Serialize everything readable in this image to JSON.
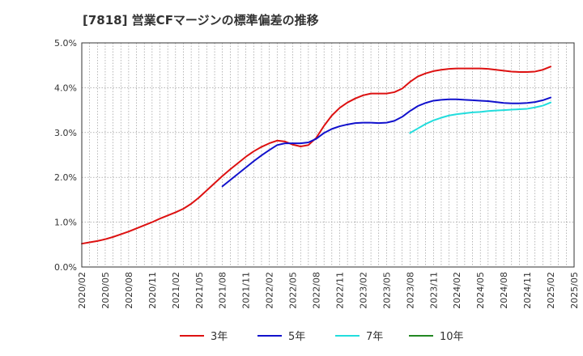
{
  "chart_data": {
    "type": "line",
    "title": "[7818]  営業CFマージンの標準偏差の推移",
    "xlabel": "",
    "ylabel": "",
    "ylim": [
      0,
      5
    ],
    "y_ticks": [
      "0.0%",
      "1.0%",
      "2.0%",
      "3.0%",
      "4.0%",
      "5.0%"
    ],
    "x_ticks": [
      "2020/02",
      "2020/05",
      "2020/08",
      "2020/11",
      "2021/02",
      "2021/05",
      "2021/08",
      "2021/11",
      "2022/02",
      "2022/05",
      "2022/08",
      "2022/11",
      "2023/02",
      "2023/05",
      "2023/08",
      "2023/11",
      "2024/02",
      "2024/05",
      "2024/08",
      "2024/11",
      "2025/02",
      "2025/05"
    ],
    "grid": true,
    "legend_position": "bottom",
    "series": [
      {
        "name": "3年",
        "color": "#dd1111",
        "points": [
          [
            "2020/02",
            0.52
          ],
          [
            "2020/03",
            0.55
          ],
          [
            "2020/04",
            0.58
          ],
          [
            "2020/05",
            0.62
          ],
          [
            "2020/06",
            0.67
          ],
          [
            "2020/07",
            0.73
          ],
          [
            "2020/08",
            0.79
          ],
          [
            "2020/09",
            0.86
          ],
          [
            "2020/10",
            0.93
          ],
          [
            "2020/11",
            1.0
          ],
          [
            "2020/12",
            1.08
          ],
          [
            "2021/01",
            1.15
          ],
          [
            "2021/02",
            1.22
          ],
          [
            "2021/03",
            1.3
          ],
          [
            "2021/04",
            1.41
          ],
          [
            "2021/05",
            1.55
          ],
          [
            "2021/06",
            1.71
          ],
          [
            "2021/07",
            1.87
          ],
          [
            "2021/08",
            2.03
          ],
          [
            "2021/09",
            2.18
          ],
          [
            "2021/10",
            2.32
          ],
          [
            "2021/11",
            2.46
          ],
          [
            "2021/12",
            2.58
          ],
          [
            "2022/01",
            2.68
          ],
          [
            "2022/02",
            2.76
          ],
          [
            "2022/03",
            2.82
          ],
          [
            "2022/04",
            2.8
          ],
          [
            "2022/05",
            2.73
          ],
          [
            "2022/06",
            2.69
          ],
          [
            "2022/07",
            2.72
          ],
          [
            "2022/08",
            2.88
          ],
          [
            "2022/09",
            3.15
          ],
          [
            "2022/10",
            3.38
          ],
          [
            "2022/11",
            3.55
          ],
          [
            "2022/12",
            3.67
          ],
          [
            "2023/01",
            3.76
          ],
          [
            "2023/02",
            3.83
          ],
          [
            "2023/03",
            3.87
          ],
          [
            "2023/04",
            3.87
          ],
          [
            "2023/05",
            3.87
          ],
          [
            "2023/06",
            3.9
          ],
          [
            "2023/07",
            3.98
          ],
          [
            "2023/08",
            4.13
          ],
          [
            "2023/09",
            4.25
          ],
          [
            "2023/10",
            4.32
          ],
          [
            "2023/11",
            4.37
          ],
          [
            "2023/12",
            4.4
          ],
          [
            "2024/01",
            4.42
          ],
          [
            "2024/02",
            4.43
          ],
          [
            "2024/03",
            4.43
          ],
          [
            "2024/04",
            4.43
          ],
          [
            "2024/05",
            4.43
          ],
          [
            "2024/06",
            4.42
          ],
          [
            "2024/07",
            4.4
          ],
          [
            "2024/08",
            4.38
          ],
          [
            "2024/09",
            4.36
          ],
          [
            "2024/10",
            4.35
          ],
          [
            "2024/11",
            4.35
          ],
          [
            "2024/12",
            4.36
          ],
          [
            "2025/01",
            4.4
          ],
          [
            "2025/02",
            4.47
          ]
        ]
      },
      {
        "name": "5年",
        "color": "#1111cc",
        "points": [
          [
            "2021/08",
            1.8
          ],
          [
            "2021/09",
            1.94
          ],
          [
            "2021/10",
            2.08
          ],
          [
            "2021/11",
            2.22
          ],
          [
            "2021/12",
            2.36
          ],
          [
            "2022/01",
            2.49
          ],
          [
            "2022/02",
            2.61
          ],
          [
            "2022/03",
            2.72
          ],
          [
            "2022/04",
            2.76
          ],
          [
            "2022/05",
            2.76
          ],
          [
            "2022/06",
            2.76
          ],
          [
            "2022/07",
            2.78
          ],
          [
            "2022/08",
            2.86
          ],
          [
            "2022/09",
            2.99
          ],
          [
            "2022/10",
            3.08
          ],
          [
            "2022/11",
            3.14
          ],
          [
            "2022/12",
            3.18
          ],
          [
            "2023/01",
            3.21
          ],
          [
            "2023/02",
            3.22
          ],
          [
            "2023/03",
            3.22
          ],
          [
            "2023/04",
            3.21
          ],
          [
            "2023/05",
            3.22
          ],
          [
            "2023/06",
            3.26
          ],
          [
            "2023/07",
            3.35
          ],
          [
            "2023/08",
            3.48
          ],
          [
            "2023/09",
            3.59
          ],
          [
            "2023/10",
            3.66
          ],
          [
            "2023/11",
            3.71
          ],
          [
            "2023/12",
            3.73
          ],
          [
            "2024/01",
            3.74
          ],
          [
            "2024/02",
            3.74
          ],
          [
            "2024/03",
            3.73
          ],
          [
            "2024/04",
            3.72
          ],
          [
            "2024/05",
            3.71
          ],
          [
            "2024/06",
            3.7
          ],
          [
            "2024/07",
            3.68
          ],
          [
            "2024/08",
            3.66
          ],
          [
            "2024/09",
            3.65
          ],
          [
            "2024/10",
            3.65
          ],
          [
            "2024/11",
            3.66
          ],
          [
            "2024/12",
            3.68
          ],
          [
            "2025/01",
            3.72
          ],
          [
            "2025/02",
            3.78
          ]
        ]
      },
      {
        "name": "7年",
        "color": "#22dddd",
        "points": [
          [
            "2023/08",
            2.99
          ],
          [
            "2023/09",
            3.09
          ],
          [
            "2023/10",
            3.19
          ],
          [
            "2023/11",
            3.27
          ],
          [
            "2023/12",
            3.33
          ],
          [
            "2024/01",
            3.38
          ],
          [
            "2024/02",
            3.41
          ],
          [
            "2024/03",
            3.43
          ],
          [
            "2024/04",
            3.45
          ],
          [
            "2024/05",
            3.46
          ],
          [
            "2024/06",
            3.48
          ],
          [
            "2024/07",
            3.49
          ],
          [
            "2024/08",
            3.5
          ],
          [
            "2024/09",
            3.51
          ],
          [
            "2024/10",
            3.52
          ],
          [
            "2024/11",
            3.53
          ],
          [
            "2024/12",
            3.56
          ],
          [
            "2025/01",
            3.6
          ],
          [
            "2025/02",
            3.67
          ]
        ]
      },
      {
        "name": "10年",
        "color": "#228822",
        "points": []
      }
    ]
  }
}
